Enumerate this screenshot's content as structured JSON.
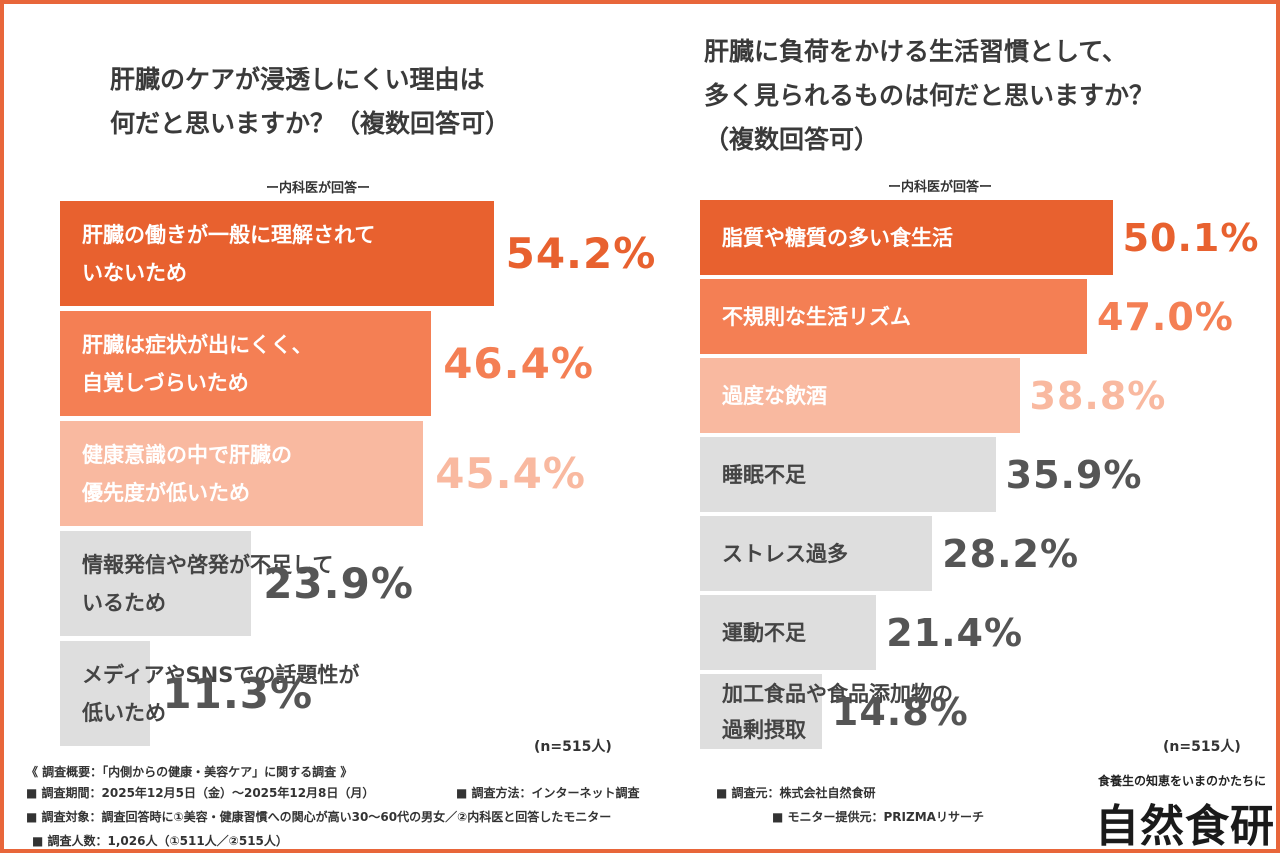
{
  "chart_data": [
    {
      "type": "bar",
      "orientation": "horizontal",
      "title": "肝臓のケアが浸透しにくい理由は\n何だと思いますか？（複数回答可）",
      "respondent_label": "ー内科医が回答ー",
      "sample_size": "(n=515人)",
      "xlim": [
        0,
        70
      ],
      "categories": [
        "肝臓の働きが一般に理解されて\nいないため",
        "肝臓は症状が出にくく、\n自覚しづらいため",
        "健康意識の中で肝臓の\n優先度が低いため",
        "情報発信や啓発が不足して\nいるため",
        "メディアやSNSでの話題性が\n低いため"
      ],
      "values": [
        54.2,
        46.4,
        45.4,
        23.9,
        11.3
      ],
      "value_labels": [
        "54.2%",
        "46.4%",
        "45.4%",
        "23.9%",
        "11.3%"
      ],
      "bar_colors": [
        "#e8612f",
        "#f47f54",
        "#f9b9a0",
        "#dedede",
        "#dedede"
      ],
      "label_colors": [
        "#ffffff",
        "#ffffff",
        "#ffffff",
        "#444444",
        "#444444"
      ],
      "value_colors": [
        "#e8612f",
        "#f47f54",
        "#f9b9a0",
        "#555555",
        "#555555"
      ]
    },
    {
      "type": "bar",
      "orientation": "horizontal",
      "title": "肝臓に負荷をかける生活習慣として、\n多く見られるものは何だと思いますか？\n（複数回答可）",
      "respondent_label": "ー内科医が回答ー",
      "sample_size": "(n=515人)",
      "xlim": [
        0,
        68
      ],
      "categories": [
        "脂質や糖質の多い食生活",
        "不規則な生活リズム",
        "過度な飲酒",
        "睡眠不足",
        "ストレス過多",
        "運動不足",
        "加工食品や食品添加物の\n過剰摂取"
      ],
      "values": [
        50.1,
        47.0,
        38.8,
        35.9,
        28.2,
        21.4,
        14.8
      ],
      "value_labels": [
        "50.1%",
        "47.0%",
        "38.8%",
        "35.9%",
        "28.2%",
        "21.4%",
        "14.8%"
      ],
      "bar_colors": [
        "#e8612f",
        "#f47f54",
        "#f9b9a0",
        "#dedede",
        "#dedede",
        "#dedede",
        "#dedede"
      ],
      "label_colors": [
        "#ffffff",
        "#ffffff",
        "#ffffff",
        "#444444",
        "#444444",
        "#444444",
        "#444444"
      ],
      "value_colors": [
        "#e8612f",
        "#f47f54",
        "#f9b9a0",
        "#555555",
        "#555555",
        "#555555",
        "#555555"
      ]
    }
  ],
  "footnotes": {
    "survey_overview": "《 調査概要：「内側からの健康・美容ケア」に関する調査 》",
    "period": "■ 調査期間：2025年12月5日（金）〜2025年12月8日（月）",
    "method": "■ 調査方法：インターネット調査",
    "organizer": "■ 調査元：株式会社自然食研",
    "target": "■ 調査対象：調査回答時に①美容・健康習慣への関心が高い30〜60代の男女／②内科医と回答したモニター",
    "provider": "■ モニター提供元：PRIZMAリサーチ",
    "count": "■ 調査人数：1,026人（①511人／②515人）"
  },
  "brand": {
    "tagline": "食養生の知恵をいまのかたちに",
    "name": "自然食研"
  },
  "colors": {
    "frame_border": "#e8663a",
    "accent": "#e8612f"
  }
}
